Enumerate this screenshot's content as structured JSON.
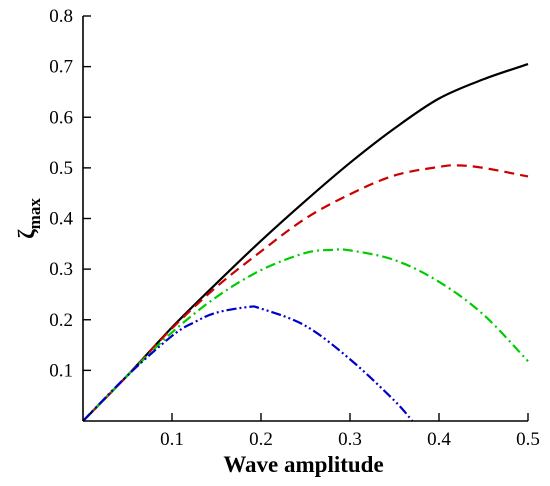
{
  "chart_data": {
    "type": "line",
    "title": "",
    "xlabel": "Wave amplitude",
    "ylabel": {
      "base": "ζ",
      "subscript": "max"
    },
    "xlim": [
      0,
      0.5
    ],
    "ylim": [
      0,
      0.8
    ],
    "xticks": [
      0.1,
      0.2,
      0.3,
      0.4,
      0.5
    ],
    "xtick_labels": [
      "0.1",
      "0.2",
      "0.3",
      "0.4",
      "0.5"
    ],
    "yticks": [
      0.1,
      0.2,
      0.3,
      0.4,
      0.5,
      0.6,
      0.7,
      0.8
    ],
    "ytick_labels": [
      "0.1",
      "0.2",
      "0.3",
      "0.4",
      "0.5",
      "0.6",
      "0.7",
      "0.8"
    ],
    "grid": false,
    "legend": "none",
    "series": [
      {
        "color": "#000000",
        "dash": "solid",
        "x": [
          0,
          0.05,
          0.1,
          0.15,
          0.2,
          0.25,
          0.3,
          0.35,
          0.4,
          0.45,
          0.5
        ],
        "y": [
          0,
          0.09,
          0.185,
          0.272,
          0.356,
          0.435,
          0.51,
          0.578,
          0.637,
          0.675,
          0.705
        ]
      },
      {
        "color": "#cc0000",
        "dash": "dashed",
        "x": [
          0,
          0.05,
          0.1,
          0.15,
          0.2,
          0.25,
          0.3,
          0.35,
          0.4,
          0.42,
          0.45,
          0.5
        ],
        "y": [
          0,
          0.09,
          0.183,
          0.265,
          0.335,
          0.4,
          0.448,
          0.485,
          0.502,
          0.505,
          0.5,
          0.483
        ]
      },
      {
        "color": "#00cc00",
        "dash": "dashdot",
        "x": [
          0,
          0.05,
          0.1,
          0.15,
          0.2,
          0.25,
          0.28,
          0.3,
          0.35,
          0.4,
          0.45,
          0.5
        ],
        "y": [
          0,
          0.09,
          0.175,
          0.245,
          0.298,
          0.332,
          0.338,
          0.337,
          0.318,
          0.275,
          0.21,
          0.118
        ]
      },
      {
        "color": "#0000cc",
        "dash": "dashdotdot",
        "x": [
          0,
          0.05,
          0.1,
          0.125,
          0.15,
          0.185,
          0.2,
          0.25,
          0.3,
          0.35,
          0.37
        ],
        "y": [
          0,
          0.09,
          0.168,
          0.195,
          0.214,
          0.225,
          0.222,
          0.188,
          0.122,
          0.04,
          0
        ]
      }
    ]
  }
}
